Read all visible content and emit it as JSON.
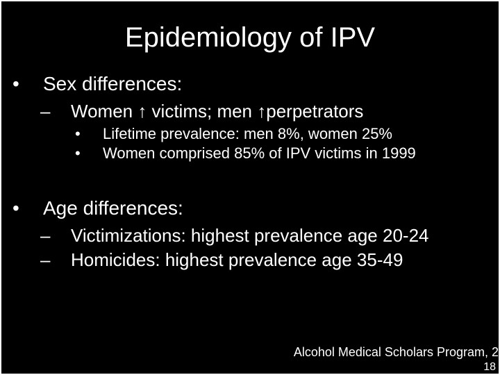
{
  "slide": {
    "title": "Epidemiology of IPV",
    "bullets": {
      "sex_header": "Sex differences:",
      "sex_sub1": "Women ↑ victims; men ↑perpetrators",
      "sex_sub1_a": "Lifetime prevalence: men 8%, women 25%",
      "sex_sub1_b": "Women comprised 85% of IPV victims in 1999",
      "age_header": "Age differences:",
      "age_sub1": "Victimizations: highest prevalence age 20-24",
      "age_sub2": "Homicides: highest prevalence age 35-49"
    },
    "footer": "Alcohol Medical Scholars Program, 2",
    "page_number": "18"
  },
  "style": {
    "background_color": "#000000",
    "text_color": "#ffffff",
    "border_color": "#ffffff",
    "font_family": "Arial",
    "title_fontsize": 40,
    "l1_fontsize": 28,
    "l2_fontsize": 26,
    "l3_fontsize": 22,
    "footer_fontsize": 18,
    "l1_bullet": "•",
    "l2_bullet": "–",
    "l3_bullet": "•"
  }
}
